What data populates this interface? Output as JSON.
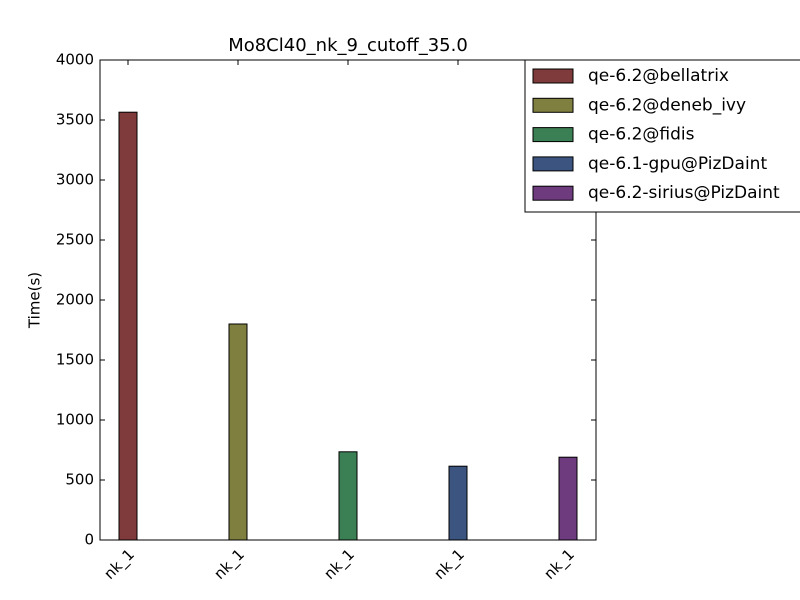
{
  "chart_data": {
    "type": "bar",
    "title": "Mo8Cl40_nk_9_cutoff_35.0",
    "ylabel": "Time(s)",
    "categories": [
      "nk_1",
      "nk_1",
      "nk_1",
      "nk_1",
      "nk_1"
    ],
    "series": [
      {
        "name": "qe-6.2@bellatrix",
        "color": "#7f3b3b",
        "values": [
          3565,
          null,
          null,
          null,
          null
        ]
      },
      {
        "name": "qe-6.2@deneb_ivy",
        "color": "#7f7f3f",
        "values": [
          null,
          1800,
          null,
          null,
          null
        ]
      },
      {
        "name": "qe-6.2@fidis",
        "color": "#3b7f55",
        "values": [
          null,
          null,
          735,
          null,
          null
        ]
      },
      {
        "name": "qe-6.1-gpu@PizDaint",
        "color": "#3b5580",
        "values": [
          null,
          null,
          null,
          615,
          null
        ]
      },
      {
        "name": "qe-6.2-sirius@PizDaint",
        "color": "#6f3b7f",
        "values": [
          null,
          null,
          null,
          null,
          690
        ]
      }
    ],
    "ylim": [
      0,
      4000
    ],
    "yticks": [
      0,
      500,
      1000,
      1500,
      2000,
      2500,
      3000,
      3500,
      4000
    ],
    "legend": "upper right"
  }
}
